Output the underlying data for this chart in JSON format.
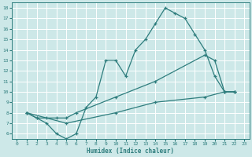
{
  "xlabel": "Humidex (Indice chaleur)",
  "bg_color": "#cde8e8",
  "line_color": "#2e7d7d",
  "grid_color": "#b8d8d8",
  "xlim": [
    -0.5,
    23.5
  ],
  "ylim": [
    5.5,
    18.5
  ],
  "yticks": [
    6,
    7,
    8,
    9,
    10,
    11,
    12,
    13,
    14,
    15,
    16,
    17,
    18
  ],
  "xticks": [
    0,
    1,
    2,
    3,
    4,
    5,
    6,
    7,
    8,
    9,
    10,
    11,
    12,
    13,
    14,
    15,
    16,
    17,
    18,
    19,
    20,
    21,
    22,
    23
  ],
  "line1_x": [
    1,
    2,
    3,
    4,
    5,
    6,
    7,
    8,
    9,
    10,
    11,
    12,
    13,
    14,
    15,
    16,
    17,
    18,
    19,
    20,
    21,
    22
  ],
  "line1_y": [
    8,
    7.5,
    7,
    6,
    5.5,
    6,
    8.5,
    9.5,
    13,
    13,
    11.5,
    14,
    15,
    16.5,
    18,
    17.5,
    17,
    15.5,
    14,
    11.5,
    10,
    10
  ],
  "line2_x": [
    1,
    2,
    3,
    4,
    5,
    6,
    10,
    14,
    19,
    20,
    21,
    22
  ],
  "line2_y": [
    8,
    7.5,
    7.5,
    7.5,
    7.5,
    8,
    9.5,
    11,
    13.5,
    13,
    10,
    10
  ],
  "line3_x": [
    1,
    5,
    10,
    14,
    19,
    21,
    22
  ],
  "line3_y": [
    8,
    7,
    8,
    9,
    9.5,
    10,
    10
  ]
}
